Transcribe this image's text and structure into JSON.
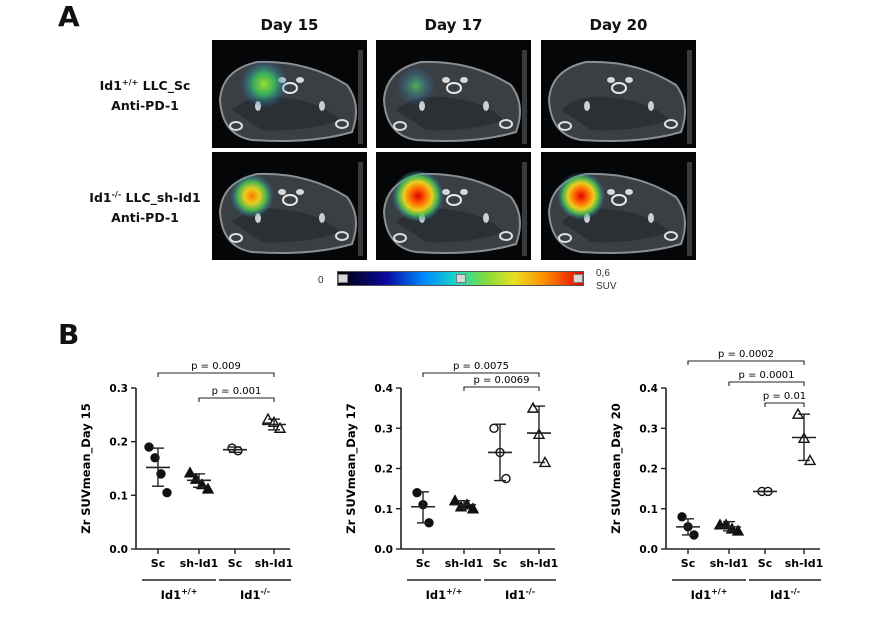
{
  "panel_a": {
    "letter": "A",
    "days": [
      "Day 15",
      "Day 17",
      "Day 20"
    ],
    "rows": [
      {
        "genotype_base": "Id1",
        "genotype_sup": "+/+",
        "genotype_rest": " LLC_Sc",
        "treatment": "Anti-PD-1"
      },
      {
        "genotype_base": "Id1",
        "genotype_sup": "-/-",
        "genotype_rest": " LLC_sh-Id1",
        "treatment": "Anti-PD-1"
      }
    ],
    "colorbar": {
      "min_label": "0",
      "max_label": "0,6",
      "unit": "SUV"
    }
  },
  "panel_b": {
    "letter": "B"
  },
  "chart_data": [
    {
      "type": "scatter",
      "ylabel": "Zr SUVmean_Day 15",
      "ylim": [
        0,
        0.3
      ],
      "yticks": [
        0.0,
        0.1,
        0.2,
        0.3
      ],
      "tick_labels": [
        "0.0",
        "0.1",
        "0.2",
        "0.3"
      ],
      "categories": [
        "Sc",
        "sh-Id1",
        "Sc",
        "sh-Id1"
      ],
      "groups": [
        {
          "base": "Id1",
          "sup": "+/+",
          "span": [
            0,
            1
          ]
        },
        {
          "base": "Id1",
          "sup": "-/-",
          "span": [
            2,
            3
          ]
        }
      ],
      "series": [
        {
          "marker": "circle-filled",
          "points": [
            0.19,
            0.17,
            0.14,
            0.105
          ],
          "mean": 0.152,
          "sd": [
            0.117,
            0.188
          ]
        },
        {
          "marker": "triangle-filled",
          "points": [
            0.142,
            0.13,
            0.12,
            0.112
          ],
          "mean": 0.128,
          "sd": [
            0.115,
            0.14
          ]
        },
        {
          "marker": "circle-open",
          "points": [
            0.188,
            0.183
          ],
          "mean": 0.185,
          "sd": [
            0.18,
            0.19
          ]
        },
        {
          "marker": "triangle-open",
          "points": [
            0.242,
            0.236,
            0.225
          ],
          "mean": 0.232,
          "sd": [
            0.222,
            0.242
          ]
        }
      ],
      "annotations": [
        {
          "text": "p = 0.009",
          "from": 0,
          "to": 3,
          "level": 0
        },
        {
          "text": "p = 0.001",
          "from": 1,
          "to": 3,
          "level": 1
        }
      ]
    },
    {
      "type": "scatter",
      "ylabel": "Zr SUVmean_Day 17",
      "ylim": [
        0,
        0.4
      ],
      "yticks": [
        0.0,
        0.1,
        0.2,
        0.3,
        0.4
      ],
      "tick_labels": [
        "0.0",
        "0.1",
        "0.2",
        "0.3",
        "0.4"
      ],
      "categories": [
        "Sc",
        "sh-Id1",
        "Sc",
        "sh-Id1"
      ],
      "groups": [
        {
          "base": "Id1",
          "sup": "+/+",
          "span": [
            0,
            1
          ]
        },
        {
          "base": "Id1",
          "sup": "-/-",
          "span": [
            2,
            3
          ]
        }
      ],
      "series": [
        {
          "marker": "circle-filled",
          "points": [
            0.14,
            0.11,
            0.065
          ],
          "mean": 0.105,
          "sd": [
            0.065,
            0.142
          ]
        },
        {
          "marker": "triangle-filled",
          "points": [
            0.12,
            0.105,
            0.11,
            0.1
          ],
          "mean": 0.11,
          "sd": [
            0.1,
            0.12
          ]
        },
        {
          "marker": "circle-open",
          "points": [
            0.3,
            0.24,
            0.175
          ],
          "mean": 0.24,
          "sd": [
            0.17,
            0.31
          ]
        },
        {
          "marker": "triangle-open",
          "points": [
            0.35,
            0.285,
            0.215
          ],
          "mean": 0.288,
          "sd": [
            0.215,
            0.355
          ]
        }
      ],
      "annotations": [
        {
          "text": "p = 0.0075",
          "from": 0,
          "to": 3,
          "level": 0
        },
        {
          "text": "p = 0.0069",
          "from": 1,
          "to": 3,
          "level": 1
        }
      ]
    },
    {
      "type": "scatter",
      "ylabel": "Zr SUVmean_Day 20",
      "ylim": [
        0,
        0.4
      ],
      "yticks": [
        0.0,
        0.1,
        0.2,
        0.3,
        0.4
      ],
      "tick_labels": [
        "0.0",
        "0.1",
        "0.2",
        "0.3",
        "0.4"
      ],
      "categories": [
        "Sc",
        "sh-Id1",
        "Sc",
        "sh-Id1"
      ],
      "groups": [
        {
          "base": "Id1",
          "sup": "+/+",
          "span": [
            0,
            1
          ]
        },
        {
          "base": "Id1",
          "sup": "-/-",
          "span": [
            2,
            3
          ]
        }
      ],
      "series": [
        {
          "marker": "circle-filled",
          "points": [
            0.08,
            0.055,
            0.035
          ],
          "mean": 0.055,
          "sd": [
            0.035,
            0.075
          ]
        },
        {
          "marker": "triangle-filled",
          "points": [
            0.06,
            0.06,
            0.05,
            0.045
          ],
          "mean": 0.055,
          "sd": [
            0.045,
            0.068
          ]
        },
        {
          "marker": "circle-open",
          "points": [
            0.143,
            0.143
          ],
          "mean": 0.143,
          "sd": [
            0.143,
            0.143
          ]
        },
        {
          "marker": "triangle-open",
          "points": [
            0.335,
            0.275,
            0.22
          ],
          "mean": 0.277,
          "sd": [
            0.22,
            0.335
          ]
        }
      ],
      "annotations": [
        {
          "text": "p = 0.0002",
          "from": 0,
          "to": 3,
          "level": 0
        },
        {
          "text": "p = 0.0001",
          "from": 1,
          "to": 3,
          "level": 1
        },
        {
          "text": "p = 0.01",
          "from": 2,
          "to": 3,
          "level": 2
        }
      ]
    }
  ]
}
